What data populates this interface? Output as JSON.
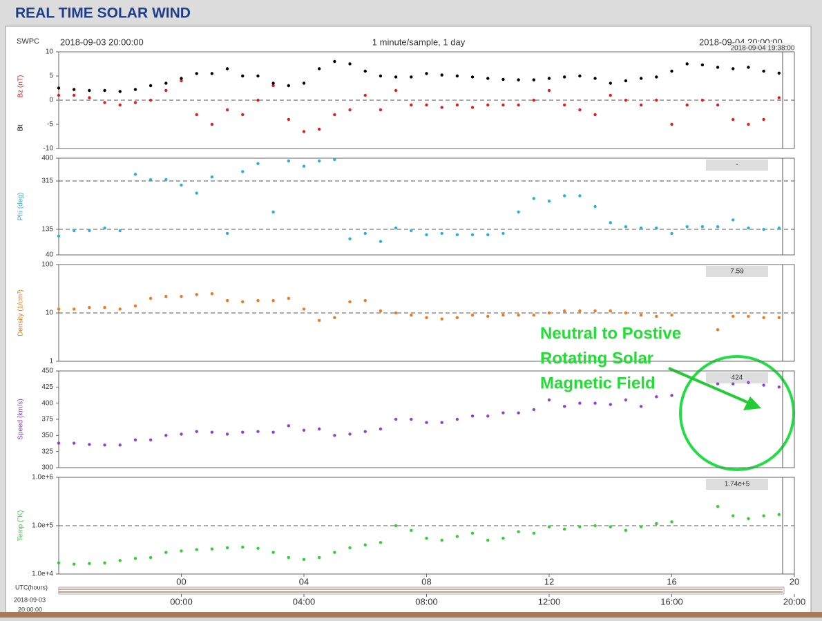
{
  "header": {
    "title": "REAL TIME SOLAR WIND"
  },
  "info": {
    "source": "SWPC",
    "start": "2018-09-03 20:00:00",
    "sampling": "1 minute/sample, 1 day",
    "end": "2018-09-04 20:00:00",
    "current": "2018-09-04 19:38:00"
  },
  "time_axis": {
    "label": "UTC(hours)",
    "date": "2018-09-03",
    "time": "20:00:00",
    "xlim": [
      -4,
      20
    ],
    "xticks": [
      {
        "value": 0,
        "label": "00:00"
      },
      {
        "value": 4,
        "label": "04:00"
      },
      {
        "value": 8,
        "label": "08:00"
      },
      {
        "value": 12,
        "label": "12:00"
      },
      {
        "value": 16,
        "label": "16:00"
      },
      {
        "value": 20,
        "label": "20:00"
      }
    ]
  },
  "annotation": [
    "Neutral to Postive",
    "Rotating Solar",
    "Magnetic Field"
  ],
  "chart_data": [
    {
      "type": "scatter",
      "xlim": [
        -4,
        20
      ],
      "ylim": [
        -10,
        10
      ],
      "yticks": [
        -10,
        -5,
        0,
        5,
        10
      ],
      "hlines": [
        0
      ],
      "x": [
        -4,
        -3.5,
        -3,
        -2.5,
        -2,
        -1.5,
        -1,
        -0.5,
        0,
        0.5,
        1,
        1.5,
        2,
        2.5,
        3,
        3.5,
        4,
        4.5,
        5,
        5.5,
        6,
        6.5,
        7,
        7.5,
        8,
        8.5,
        9,
        9.5,
        10,
        10.5,
        11,
        11.5,
        12,
        12.5,
        13,
        13.5,
        14,
        14.5,
        15,
        15.5,
        16,
        16.5,
        17,
        17.5,
        18,
        18.5,
        19,
        19.5
      ],
      "series": [
        {
          "name": "Bz (nT)",
          "color": "#e02020",
          "values": [
            1,
            1,
            0.5,
            -0.5,
            -1,
            -0.5,
            0,
            2,
            4,
            -3,
            -5,
            -2,
            -3,
            0,
            3,
            -4,
            -6.5,
            -6,
            -3,
            -2,
            1,
            -2,
            2,
            -1,
            -1,
            -1.5,
            -1,
            -1.5,
            -1,
            -1,
            -1,
            0,
            2,
            -1,
            -2,
            -3,
            1,
            0,
            -1,
            0,
            -5,
            -1,
            0,
            -1,
            -4,
            -5,
            -4,
            0.5
          ]
        },
        {
          "name": "Bt",
          "color": "#000000",
          "values": [
            2.5,
            2.2,
            2,
            2,
            1.8,
            2.2,
            3,
            3.5,
            4.5,
            5.5,
            5.5,
            6.5,
            5,
            5,
            3.5,
            3,
            3.5,
            6.5,
            8,
            7.5,
            6,
            5,
            4.8,
            4.8,
            5.5,
            5.2,
            5,
            4.8,
            4.5,
            4.3,
            4.2,
            4.2,
            4.5,
            4.8,
            5,
            4.5,
            3.5,
            4,
            4.5,
            4.8,
            6,
            7.5,
            7.3,
            6.8,
            6.5,
            6.8,
            6,
            5.6
          ]
        }
      ]
    },
    {
      "type": "scatter",
      "xlim": [
        -4,
        20
      ],
      "ylim": [
        40,
        400
      ],
      "yticks": [
        40,
        135,
        315,
        400
      ],
      "hlines": [
        135,
        315
      ],
      "readout": "-",
      "x": [
        -4,
        -3.5,
        -3,
        -2.5,
        -2,
        -1.5,
        -1,
        -0.5,
        0,
        0.5,
        1,
        1.5,
        2,
        2.5,
        3,
        3.5,
        4,
        4.5,
        5,
        5.5,
        6,
        6.5,
        7,
        7.5,
        8,
        8.5,
        9,
        9.5,
        10,
        10.5,
        11,
        11.5,
        12,
        12.5,
        13,
        13.5,
        14,
        14.5,
        15,
        15.5,
        16,
        16.5,
        17,
        17.5,
        18,
        18.5,
        19,
        19.5
      ],
      "series": [
        {
          "name": "Phi (deg)",
          "color": "#2ab0e0",
          "values": [
            110,
            130,
            130,
            140,
            130,
            340,
            320,
            320,
            300,
            270,
            330,
            120,
            350,
            380,
            200,
            390,
            370,
            390,
            395,
            100,
            120,
            90,
            140,
            130,
            115,
            120,
            115,
            115,
            115,
            120,
            200,
            250,
            240,
            260,
            260,
            220,
            160,
            145,
            140,
            140,
            120,
            145,
            145,
            145,
            170,
            140,
            135,
            140
          ]
        }
      ]
    },
    {
      "type": "scatter",
      "log": true,
      "xlim": [
        -4,
        20
      ],
      "ylim": [
        1,
        100
      ],
      "yticks": [
        1,
        10,
        100
      ],
      "hlines": [
        10
      ],
      "readout": "7.59",
      "x": [
        -4,
        -3.5,
        -3,
        -2.5,
        -2,
        -1.5,
        -1,
        -0.5,
        0,
        0.5,
        1,
        1.5,
        2,
        2.5,
        3,
        3.5,
        4,
        4.5,
        5,
        5.5,
        6,
        6.5,
        7,
        7.5,
        8,
        8.5,
        9,
        9.5,
        10,
        10.5,
        11,
        11.5,
        12,
        12.5,
        13,
        13.5,
        14,
        14.5,
        15,
        15.5,
        16,
        16.5,
        17,
        17.5,
        18,
        18.5,
        19,
        19.5
      ],
      "series": [
        {
          "name": "Density (1/cm³)",
          "color": "#f07820",
          "values": [
            12,
            12,
            13,
            13,
            12,
            14,
            20,
            22,
            22,
            24,
            25,
            18,
            17,
            18,
            18,
            20,
            12,
            7,
            8,
            17,
            18,
            11,
            10,
            9,
            8,
            7.5,
            8,
            9,
            8.5,
            9,
            9,
            9,
            10,
            11,
            11,
            11,
            11,
            10,
            9,
            8.5,
            9,
            null,
            null,
            4.5,
            8.5,
            8.5,
            8,
            8
          ]
        }
      ]
    },
    {
      "type": "scatter",
      "xlim": [
        -4,
        20
      ],
      "ylim": [
        300,
        450
      ],
      "yticks": [
        300,
        325,
        350,
        375,
        400,
        425,
        450
      ],
      "hlines": [],
      "readout": "424",
      "x": [
        -4,
        -3.5,
        -3,
        -2.5,
        -2,
        -1.5,
        -1,
        -0.5,
        0,
        0.5,
        1,
        1.5,
        2,
        2.5,
        3,
        3.5,
        4,
        4.5,
        5,
        5.5,
        6,
        6.5,
        7,
        7.5,
        8,
        8.5,
        9,
        9.5,
        10,
        10.5,
        11,
        11.5,
        12,
        12.5,
        13,
        13.5,
        14,
        14.5,
        15,
        15.5,
        16,
        16.5,
        17,
        17.5,
        18,
        18.5,
        19,
        19.5
      ],
      "series": [
        {
          "name": "Speed (km/s)",
          "color": "#9040d0",
          "values": [
            338,
            338,
            336,
            335,
            335,
            343,
            343,
            350,
            352,
            356,
            355,
            352,
            355,
            356,
            355,
            365,
            358,
            360,
            350,
            352,
            356,
            360,
            375,
            375,
            370,
            370,
            375,
            380,
            380,
            385,
            385,
            390,
            405,
            395,
            400,
            400,
            398,
            405,
            395,
            410,
            412,
            null,
            null,
            430,
            430,
            432,
            428,
            425
          ]
        }
      ]
    },
    {
      "type": "scatter",
      "log": true,
      "xlim": [
        -4,
        20
      ],
      "ylim": [
        10000,
        1000000
      ],
      "yticks": [
        {
          "value": 10000,
          "label": "1.0e+4"
        },
        {
          "value": 100000,
          "label": "1.0e+5"
        },
        {
          "value": 1000000,
          "label": "1.0e+6"
        }
      ],
      "hlines": [
        100000
      ],
      "readout": "1.74e+5",
      "xticks": [
        {
          "value": 0,
          "label": "00"
        },
        {
          "value": 4,
          "label": "04"
        },
        {
          "value": 8,
          "label": "08"
        },
        {
          "value": 12,
          "label": "12"
        },
        {
          "value": 16,
          "label": "16"
        },
        {
          "value": 20,
          "label": "20"
        }
      ],
      "x": [
        -4,
        -3.5,
        -3,
        -2.5,
        -2,
        -1.5,
        -1,
        -0.5,
        0,
        0.5,
        1,
        1.5,
        2,
        2.5,
        3,
        3.5,
        4,
        4.5,
        5,
        5.5,
        6,
        6.5,
        7,
        7.5,
        8,
        8.5,
        9,
        9.5,
        10,
        10.5,
        11,
        11.5,
        12,
        12.5,
        13,
        13.5,
        14,
        14.5,
        15,
        15.5,
        16,
        16.5,
        17,
        17.5,
        18,
        18.5,
        19,
        19.5
      ],
      "series": [
        {
          "name": "Temp (°K)",
          "color": "#30d030",
          "values": [
            17000,
            16000,
            16500,
            17000,
            19000,
            21000,
            22000,
            28000,
            30000,
            32000,
            33000,
            35000,
            36000,
            34000,
            28000,
            22000,
            20000,
            22000,
            28000,
            35000,
            40000,
            45000,
            100000,
            80000,
            55000,
            50000,
            60000,
            70000,
            50000,
            55000,
            75000,
            70000,
            95000,
            85000,
            95000,
            100000,
            95000,
            80000,
            95000,
            110000,
            120000,
            null,
            null,
            250000,
            160000,
            140000,
            160000,
            170000
          ]
        }
      ]
    }
  ]
}
